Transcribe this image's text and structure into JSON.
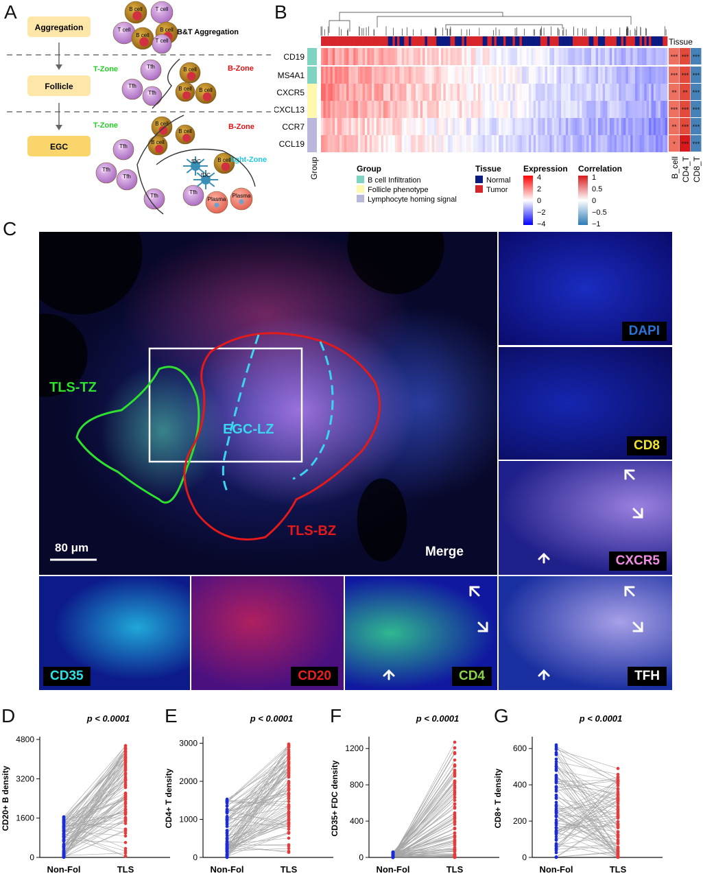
{
  "panels": {
    "a": "A",
    "b": "B",
    "c": "C",
    "d": "D",
    "e": "E",
    "f": "F",
    "g": "G"
  },
  "panel_a": {
    "stages": [
      "Aggregation",
      "Follicle",
      "EGC"
    ],
    "bt_label": "B&T Aggregation",
    "t_zone": "T-Zone",
    "b_zone": "B-Zone",
    "light_zone": "light-Zone",
    "cells": {
      "b": "B cell",
      "t": "T cell",
      "tfh": "Tfh",
      "fdc": "fDC",
      "plasma": "Plasma"
    },
    "colors": {
      "stage_box": "#fde7a8",
      "t_zone": "#22cc22",
      "b_zone": "#dd1111",
      "light_zone": "#22c8e0",
      "b_cell": "#b8860b",
      "t_cell": "#c487d6",
      "plasma": "#f08070",
      "fdc": "#3a8fb7"
    }
  },
  "panel_b": {
    "tissue_title": "Tissue",
    "genes": [
      "CD19",
      "MS4A1",
      "CXCR5",
      "CXCL13",
      "CCR7",
      "CCL19"
    ],
    "group_axis_label": "Group",
    "group_legend": {
      "title": "Group",
      "items": [
        "B cell Infiltration",
        "Follicle phenotype",
        "Lymphocyte homing signal"
      ],
      "colors": [
        "#7fd4c1",
        "#fff9b0",
        "#b9b7db"
      ]
    },
    "tissue_legend": {
      "title": "Tissue",
      "items": [
        "Normal",
        "Tumor"
      ],
      "colors": [
        "#0a1a80",
        "#d7262b"
      ]
    },
    "expression_legend": {
      "title": "Expression",
      "ticks": [
        "4",
        "2",
        "0",
        "−2",
        "−4"
      ]
    },
    "correlation_legend": {
      "title": "Correlation",
      "ticks": [
        "1",
        "0.5",
        "0",
        "−0.5",
        "−1"
      ]
    },
    "corr_columns": [
      "B_cell",
      "CD4_T",
      "CD8_T"
    ],
    "corr_stars": [
      [
        "***",
        "***",
        "***"
      ],
      [
        "***",
        "***",
        "***"
      ],
      [
        "**",
        "**",
        "***"
      ],
      [
        "***",
        "***",
        "***"
      ],
      [
        "**",
        "***",
        "***"
      ],
      [
        "*",
        "***",
        "***"
      ]
    ]
  },
  "panel_c": {
    "main_labels": {
      "tls_tz": "TLS-TZ",
      "egc_lz": "EGC-LZ",
      "tls_bz": "TLS-BZ",
      "merge": "Merge"
    },
    "scale_bar": "80 μm",
    "channels": [
      "DAPI",
      "CD8",
      "CXCR5",
      "CD35",
      "CD20",
      "CD4",
      "TFH"
    ],
    "channel_colors": [
      "#2a72d6",
      "#f2e530",
      "#f08ce6",
      "#30e0e8",
      "#e82020",
      "#8cd248",
      "#ffffff"
    ]
  },
  "chart_data": [
    {
      "type": "scatter",
      "panel": "D",
      "ylabel": "CD20+ B density",
      "categories": [
        "Non-Fol",
        "TLS"
      ],
      "pvalue": "p < 0.0001",
      "yticks": [
        0,
        1600,
        3200,
        4800
      ],
      "ylim": [
        0,
        4800
      ],
      "paired": true,
      "range_nonfol": [
        0,
        1650
      ],
      "range_tls": [
        0,
        4550
      ]
    },
    {
      "type": "scatter",
      "panel": "E",
      "ylabel": "CD4+ T density",
      "categories": [
        "Non-Fol",
        "TLS"
      ],
      "pvalue": "p < 0.0001",
      "yticks": [
        0,
        1000,
        2000,
        3000
      ],
      "ylim": [
        0,
        3100
      ],
      "paired": true,
      "range_nonfol": [
        0,
        1530
      ],
      "range_tls": [
        0,
        2980
      ]
    },
    {
      "type": "scatter",
      "panel": "F",
      "ylabel": "CD35+ FDC density",
      "categories": [
        "Non-Fol",
        "TLS"
      ],
      "pvalue": "p < 0.0001",
      "yticks": [
        0,
        400,
        800,
        1200
      ],
      "ylim": [
        0,
        1300
      ],
      "paired": true,
      "range_nonfol": [
        0,
        60
      ],
      "range_tls": [
        0,
        1270
      ]
    },
    {
      "type": "scatter",
      "panel": "G",
      "ylabel": "CD8+ T density",
      "categories": [
        "Non-Fol",
        "TLS"
      ],
      "pvalue": "p < 0.0001",
      "yticks": [
        0,
        200,
        400,
        600
      ],
      "ylim": [
        0,
        650
      ],
      "paired": true,
      "range_nonfol": [
        0,
        620
      ],
      "range_tls": [
        0,
        490
      ]
    }
  ]
}
